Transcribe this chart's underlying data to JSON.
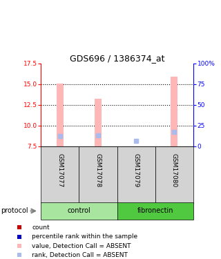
{
  "title": "GDS696 / 1386374_at",
  "samples": [
    "GSM17077",
    "GSM17078",
    "GSM17079",
    "GSM17080"
  ],
  "ylim_left": [
    7.5,
    17.5
  ],
  "ylim_right": [
    0,
    100
  ],
  "yticks_left": [
    7.5,
    10.0,
    12.5,
    15.0,
    17.5
  ],
  "yticks_right": [
    0,
    25,
    50,
    75,
    100
  ],
  "bar_values": [
    15.1,
    13.25,
    7.5,
    15.9
  ],
  "bar_bottom": 7.5,
  "bar_color_absent": "#FFB6B6",
  "rank_values": [
    8.75,
    8.8,
    8.15,
    9.25
  ],
  "rank_color_absent": "#AABBEE",
  "count_color": "#CC0000",
  "percentile_color": "#0000CC",
  "control_color": "#A8E6A0",
  "fibronectin_color": "#50C840",
  "gray_bg": "#D3D3D3",
  "legend_items": [
    {
      "color": "#CC0000",
      "label": "count"
    },
    {
      "color": "#0000CC",
      "label": "percentile rank within the sample"
    },
    {
      "color": "#FFB6B6",
      "label": "value, Detection Call = ABSENT"
    },
    {
      "color": "#AABBEE",
      "label": "rank, Detection Call = ABSENT"
    }
  ]
}
